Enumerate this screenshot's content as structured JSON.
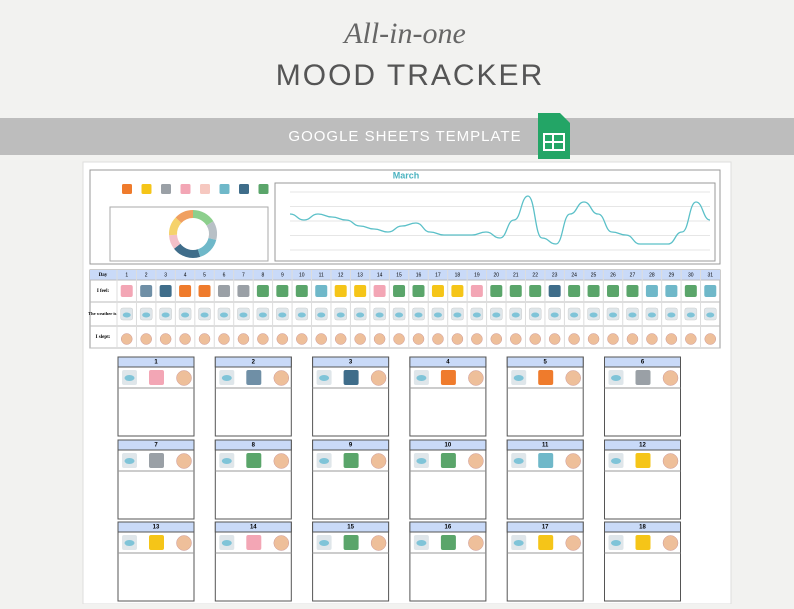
{
  "header": {
    "script": "All-in-one",
    "title": "MOOD TRACKER"
  },
  "banner": {
    "text": "GOOGLE SHEETS TEMPLATE"
  },
  "sheet": {
    "month": "March",
    "mood_colors": [
      "#ef7b2c",
      "#f5c518",
      "#9aa0a6",
      "#f3a6b5",
      "#f6c8c0",
      "#6fb8c9",
      "#3f6d8a",
      "#5aa56a"
    ],
    "donut": {
      "values": [
        5,
        4,
        5,
        6,
        3,
        4,
        4
      ],
      "colors": [
        "#8ccf8c",
        "#b8c0c6",
        "#6fb8c9",
        "#3f6d8a",
        "#f3c0c8",
        "#f5d26b",
        "#f0a060"
      ]
    },
    "chart": {
      "values": [
        6,
        5,
        6,
        5.5,
        5,
        4,
        3.5,
        3,
        4,
        4.5,
        3,
        2.5,
        2.5,
        2.5,
        3,
        2,
        5,
        9,
        2,
        1,
        6,
        8,
        6,
        3,
        2.5,
        1,
        1,
        1,
        3,
        8,
        5
      ],
      "color": "#5bc0c8"
    },
    "grid": {
      "row_labels": [
        "Day",
        "I feel:",
        "The weather is:",
        "I slept:"
      ],
      "days": [
        1,
        2,
        3,
        4,
        5,
        6,
        7,
        8,
        9,
        10,
        11,
        12,
        13,
        14,
        15,
        16,
        17,
        18,
        19,
        20,
        21,
        22,
        23,
        24,
        25,
        26,
        27,
        28,
        29,
        30,
        31
      ],
      "moods": [
        "#f3a6b5",
        "#6f8fa6",
        "#3f6d8a",
        "#ef7b2c",
        "#ef7b2c",
        "#9aa0a6",
        "#9aa0a6",
        "#5aa56a",
        "#5aa56a",
        "#5aa56a",
        "#6fb8c9",
        "#f5c518",
        "#f5c518",
        "#f3a6b5",
        "#5aa56a",
        "#5aa56a",
        "#f5c518",
        "#f5c518",
        "#f3a6b5",
        "#5aa56a",
        "#5aa56a",
        "#5aa56a",
        "#3f6d8a",
        "#5aa56a",
        "#5aa56a",
        "#5aa56a",
        "#5aa56a",
        "#6fb8c9",
        "#6fb8c9",
        "#5aa56a",
        "#6fb8c9"
      ]
    },
    "cards": [
      1,
      2,
      3,
      4,
      5,
      6,
      7,
      8,
      9,
      10,
      11,
      12,
      13,
      14,
      15,
      16,
      17,
      18
    ]
  }
}
